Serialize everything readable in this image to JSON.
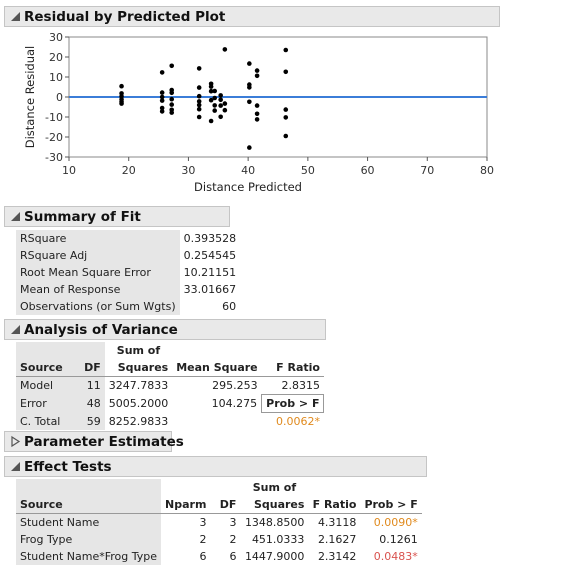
{
  "residual_plot": {
    "title": "Residual by Predicted Plot",
    "chart_data": {
      "type": "scatter",
      "xlabel": "Distance Predicted",
      "ylabel": "Distance Residual",
      "xlim": [
        10,
        80
      ],
      "ylim": [
        -30,
        30
      ],
      "x_ticks": [
        10,
        20,
        30,
        40,
        50,
        60,
        70,
        80
      ],
      "y_ticks": [
        30,
        20,
        10,
        0,
        -10,
        -20,
        -30
      ],
      "reference_line": 0,
      "colors": {
        "points": "#000000",
        "zero_line": "#3b7dd8"
      },
      "points": [
        [
          18.8,
          5.4
        ],
        [
          18.8,
          1.8
        ],
        [
          18.8,
          0.3
        ],
        [
          18.8,
          -1.2
        ],
        [
          18.8,
          -2.4
        ],
        [
          18.8,
          -3.3
        ],
        [
          25.6,
          12.3
        ],
        [
          25.6,
          2.2
        ],
        [
          25.6,
          0.0
        ],
        [
          25.6,
          -1.8
        ],
        [
          25.6,
          -5.5
        ],
        [
          25.6,
          -7.2
        ],
        [
          27.2,
          15.6
        ],
        [
          27.2,
          3.5
        ],
        [
          27.2,
          2.1
        ],
        [
          27.2,
          -1.1
        ],
        [
          27.2,
          -3.8
        ],
        [
          27.2,
          -6.4
        ],
        [
          27.2,
          -7.8
        ],
        [
          31.8,
          14.3
        ],
        [
          31.8,
          4.7
        ],
        [
          31.8,
          0.4
        ],
        [
          31.8,
          -2.2
        ],
        [
          31.8,
          -4.0
        ],
        [
          31.8,
          -6.1
        ],
        [
          31.8,
          -10.0
        ],
        [
          33.8,
          6.6
        ],
        [
          33.8,
          5.2
        ],
        [
          33.8,
          2.9
        ],
        [
          33.8,
          -1.6
        ],
        [
          33.8,
          -12.0
        ],
        [
          34.4,
          3.0
        ],
        [
          34.4,
          -0.5
        ],
        [
          34.4,
          -4.2
        ],
        [
          34.4,
          -6.8
        ],
        [
          35.4,
          0.8
        ],
        [
          35.4,
          -1.4
        ],
        [
          35.4,
          -4.3
        ],
        [
          35.4,
          -9.9
        ],
        [
          36.1,
          23.8
        ],
        [
          36.1,
          -3.3
        ],
        [
          36.1,
          -6.6
        ],
        [
          40.2,
          16.7
        ],
        [
          40.2,
          6.2
        ],
        [
          40.2,
          4.8
        ],
        [
          40.2,
          -2.4
        ],
        [
          40.2,
          -25.3
        ],
        [
          41.5,
          13.2
        ],
        [
          41.5,
          10.6
        ],
        [
          41.5,
          -4.3
        ],
        [
          41.5,
          -8.4
        ],
        [
          41.5,
          -11.2
        ],
        [
          46.3,
          23.5
        ],
        [
          46.3,
          12.6
        ],
        [
          46.3,
          -6.3
        ],
        [
          46.3,
          -10.2
        ],
        [
          46.3,
          -19.5
        ]
      ]
    }
  },
  "summary_of_fit": {
    "title": "Summary of Fit",
    "rows": [
      {
        "label": "RSquare",
        "value": "0.393528"
      },
      {
        "label": "RSquare Adj",
        "value": "0.254545"
      },
      {
        "label": "Root Mean Square Error",
        "value": "10.21151"
      },
      {
        "label": "Mean of Response",
        "value": "33.01667"
      },
      {
        "label": "Observations (or Sum Wgts)",
        "value": "60"
      }
    ]
  },
  "analysis_of_variance": {
    "title": "Analysis of Variance",
    "headers": {
      "source": "Source",
      "df": "DF",
      "ss_top": "Sum of",
      "ss_bottom": "Squares",
      "ms": "Mean Square",
      "fratio": "F Ratio",
      "probf": "Prob > F"
    },
    "rows": [
      {
        "source": "Model",
        "df": "11",
        "ss": "3247.7833",
        "ms": "295.253",
        "f": "2.8315"
      },
      {
        "source": "Error",
        "df": "48",
        "ss": "5005.2000",
        "ms": "104.275"
      },
      {
        "source": "C. Total",
        "df": "59",
        "ss": "8252.9833"
      }
    ],
    "prob": "0.0062*",
    "prob_color": "#e08a1e"
  },
  "parameter_estimates": {
    "title": "Parameter Estimates"
  },
  "effect_tests": {
    "title": "Effect Tests",
    "headers": {
      "source": "Source",
      "nparm": "Nparm",
      "df": "DF",
      "ss_top": "Sum of",
      "ss_bottom": "Squares",
      "fratio": "F Ratio",
      "probf": "Prob > F"
    },
    "rows": [
      {
        "source": "Student Name",
        "nparm": "3",
        "df": "3",
        "ss": "1348.8500",
        "f": "4.3118",
        "p": "0.0090*",
        "p_color": "orange"
      },
      {
        "source": "Frog Type",
        "nparm": "2",
        "df": "2",
        "ss": "451.0333",
        "f": "2.1627",
        "p": "0.1261",
        "p_color": "none"
      },
      {
        "source": "Student Name*Frog Type",
        "nparm": "6",
        "df": "6",
        "ss": "1447.9000",
        "f": "2.3142",
        "p": "0.0483*",
        "p_color": "red"
      }
    ]
  }
}
